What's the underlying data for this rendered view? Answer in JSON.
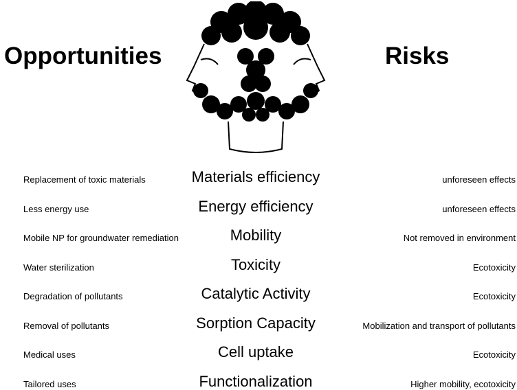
{
  "header": {
    "left_title": "Opportunities",
    "right_title": "Risks"
  },
  "rows": [
    {
      "opportunity": "Replacement of toxic materials",
      "property": "Materials efficiency",
      "risk": "unforeseen effects"
    },
    {
      "opportunity": "Less energy use",
      "property": "Energy efficiency",
      "risk": "unforeseen effects"
    },
    {
      "opportunity": "Mobile NP for groundwater remediation",
      "property": "Mobility",
      "risk": "Not removed in environment"
    },
    {
      "opportunity": "Water sterilization",
      "property": "Toxicity",
      "risk": "Ecotoxicity"
    },
    {
      "opportunity": "Degradation of pollutants",
      "property": "Catalytic Activity",
      "risk": "Ecotoxicity"
    },
    {
      "opportunity": "Removal of pollutants",
      "property": "Sorption Capacity",
      "risk": "Mobilization and transport of pollutants"
    },
    {
      "opportunity": "Medical uses",
      "property": "Cell uptake",
      "risk": "Ecotoxicity"
    },
    {
      "opportunity": "Tailored uses",
      "property": "Functionalization",
      "risk": "Higher mobility, ecotoxicity"
    }
  ]
}
